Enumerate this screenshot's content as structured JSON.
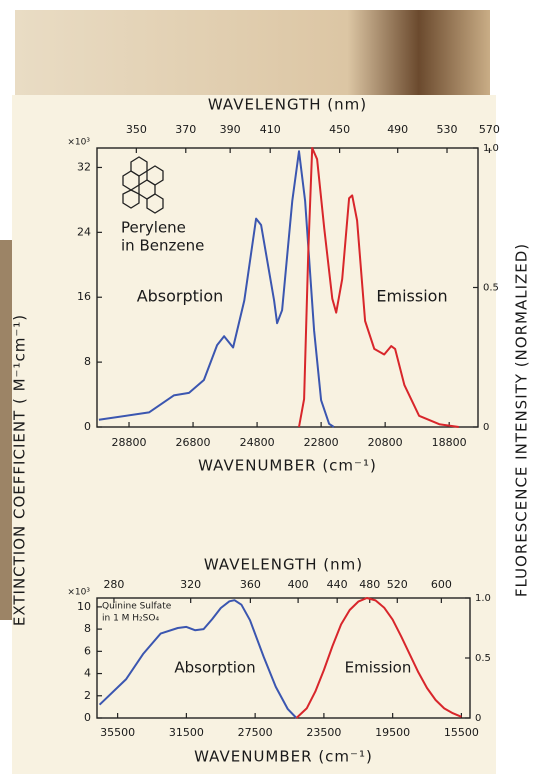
{
  "y_label_left": "EXTINCTION COEFFICIENT ( M⁻¹cm⁻¹)",
  "y_label_right": "FLUORESCENCE INTENSITY (NORMALIZED)",
  "chart_data": [
    {
      "type": "line",
      "x2label": "WAVELENGTH (nm)",
      "xlabel": "WAVENUMBER (cm⁻¹)",
      "y_multiplier": "×10³",
      "annotations": [
        "Perylene",
        "in Benzene"
      ],
      "xlim": [
        29800,
        17900
      ],
      "xticks": [
        28800,
        26800,
        24800,
        22800,
        20800,
        18800
      ],
      "x2ticks": [
        350,
        370,
        390,
        410,
        450,
        490,
        530,
        570
      ],
      "ylim": [
        0,
        34.4
      ],
      "yticks": [
        0,
        8,
        16,
        24,
        32
      ],
      "y2lim": [
        0,
        1
      ],
      "y2ticks": [
        0,
        0.5,
        {
          "value": 1,
          "label": "1.0"
        }
      ],
      "series": [
        {
          "name": "Absorption",
          "color": "#3b56b0",
          "x": [
            29740,
            28175,
            27400,
            26925,
            26460,
            26050,
            25830,
            25550,
            25200,
            24830,
            24675,
            24270,
            24175,
            24020,
            23700,
            23490,
            23300,
            23020,
            22800,
            22550,
            22400
          ],
          "values": [
            0.9,
            1.8,
            3.9,
            4.2,
            5.8,
            10.1,
            11.2,
            9.8,
            15.6,
            25.7,
            24.9,
            15.6,
            12.8,
            14.4,
            27.9,
            34,
            27.9,
            11.9,
            3.3,
            0.4,
            0
          ]
        },
        {
          "name": "Emission",
          "color": "#d8262b",
          "axis": "y2",
          "x": [
            23490,
            23330,
            23200,
            23080,
            22925,
            22700,
            22450,
            22330,
            22140,
            21925,
            21830,
            21675,
            21425,
            21140,
            20830,
            20610,
            20490,
            20200,
            19740,
            19110,
            18500
          ],
          "values": [
            0,
            0.1,
            0.63,
            1.0,
            0.96,
            0.71,
            0.46,
            0.41,
            0.53,
            0.82,
            0.83,
            0.74,
            0.38,
            0.28,
            0.26,
            0.29,
            0.28,
            0.15,
            0.04,
            0.01,
            0
          ]
        }
      ]
    },
    {
      "type": "line",
      "x2label": "WAVELENGTH (nm)",
      "xlabel": "WAVENUMBER (cm⁻¹)",
      "y_multiplier": "×10³",
      "annotations": [
        "Quinine Sulfate",
        "in 1 M H₂SO₄"
      ],
      "xlim": [
        36700,
        15000
      ],
      "xticks": [
        35500,
        31500,
        27500,
        23500,
        19500,
        15500
      ],
      "x2ticks": [
        280,
        320,
        360,
        400,
        440,
        480,
        520,
        600
      ],
      "ylim": [
        0,
        10.8
      ],
      "yticks": [
        0,
        2,
        4,
        6,
        8,
        10
      ],
      "y2lim": [
        0,
        1
      ],
      "y2ticks": [
        0,
        0.5,
        {
          "value": 1,
          "label": "1.0"
        }
      ],
      "series": [
        {
          "name": "Absorption",
          "color": "#3b56b0",
          "x": [
            36550,
            35000,
            34000,
            33000,
            32000,
            31500,
            31000,
            30500,
            30000,
            29500,
            29000,
            28700,
            28300,
            27800,
            27000,
            26300,
            25600,
            25100
          ],
          "values": [
            1.2,
            3.5,
            5.8,
            7.6,
            8.1,
            8.2,
            7.9,
            8.0,
            8.9,
            9.9,
            10.5,
            10.6,
            10.2,
            8.8,
            5.5,
            2.8,
            0.8,
            0
          ]
        },
        {
          "name": "Emission",
          "color": "#d8262b",
          "axis": "y2",
          "x": [
            25100,
            24500,
            24000,
            23500,
            23000,
            22500,
            22000,
            21500,
            21000,
            20500,
            20000,
            19500,
            19000,
            18500,
            18000,
            17500,
            17000,
            16500,
            16000,
            15500
          ],
          "values": [
            0,
            0.08,
            0.22,
            0.4,
            0.6,
            0.78,
            0.9,
            0.97,
            1.0,
            0.98,
            0.92,
            0.82,
            0.68,
            0.53,
            0.38,
            0.25,
            0.15,
            0.08,
            0.04,
            0.01
          ]
        }
      ]
    }
  ]
}
